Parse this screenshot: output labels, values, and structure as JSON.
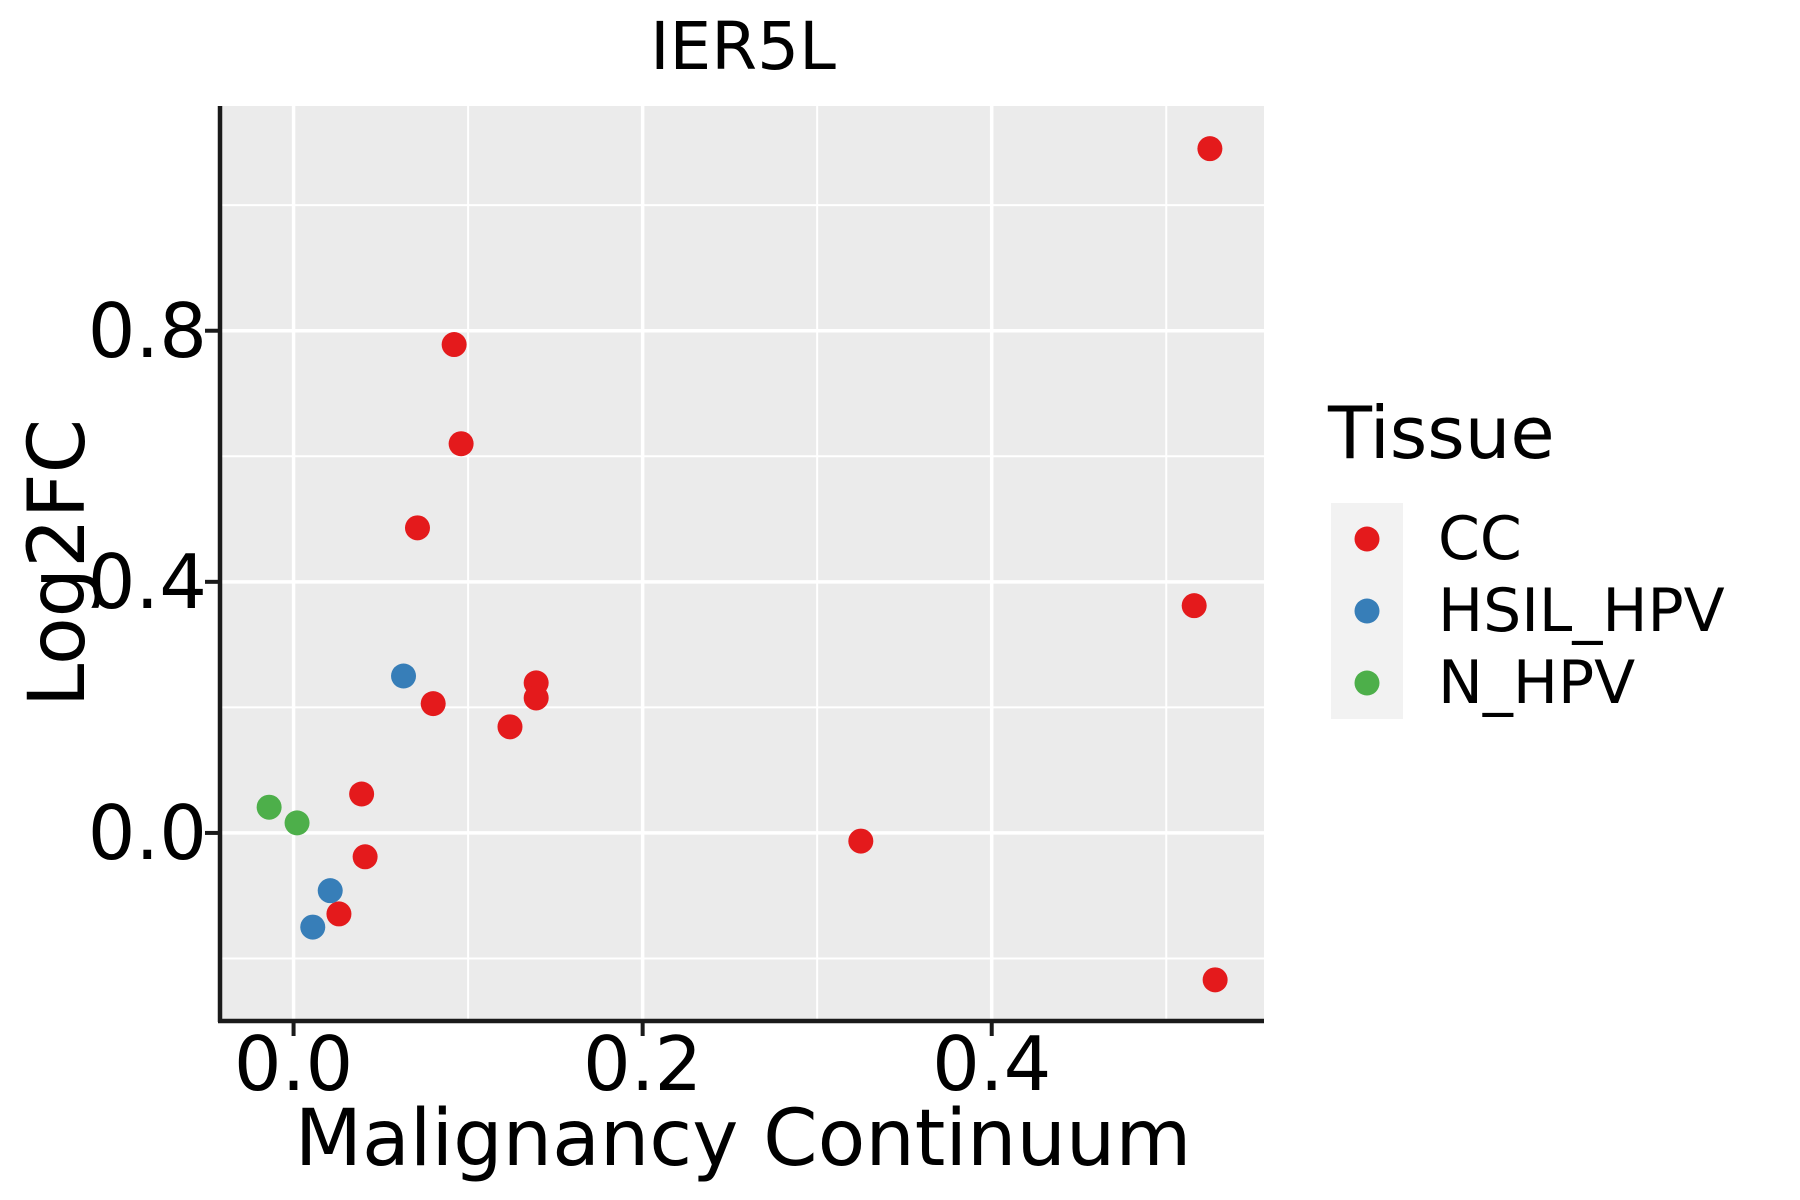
{
  "chart_data": {
    "type": "scatter",
    "title": "IER5L",
    "xlabel": "Malignancy Continuum",
    "ylabel": "Log2FC",
    "xlim": [
      -0.041,
      0.556
    ],
    "ylim": [
      -0.298,
      1.158
    ],
    "grid": true,
    "legend_position": "right",
    "x_ticks": {
      "values": [
        0.0,
        0.2,
        0.4
      ],
      "labels": [
        "0.0",
        "0.2",
        "0.4"
      ]
    },
    "y_ticks": {
      "values": [
        0.8,
        0.4,
        0.0
      ],
      "labels": [
        "0.8",
        "0.4",
        "0.0"
      ]
    },
    "x_minor": [
      0.1,
      0.3,
      0.5
    ],
    "y_minor": [
      1.0,
      0.6,
      0.2,
      -0.2
    ],
    "legend": {
      "title": "Tissue",
      "entries": [
        {
          "label": "CC",
          "color": "#E41A1C"
        },
        {
          "label": "HSIL_HPV",
          "color": "#377EB8"
        },
        {
          "label": "N_HPV",
          "color": "#4DAF4A"
        }
      ]
    },
    "series": [
      {
        "name": "CC",
        "color": "#E41A1C",
        "points": [
          [
            0.525,
            1.09
          ],
          [
            0.092,
            0.778
          ],
          [
            0.096,
            0.62
          ],
          [
            0.071,
            0.486
          ],
          [
            0.08,
            0.206
          ],
          [
            0.139,
            0.239
          ],
          [
            0.139,
            0.215
          ],
          [
            0.124,
            0.169
          ],
          [
            0.516,
            0.362
          ],
          [
            0.039,
            0.062
          ],
          [
            0.041,
            -0.038
          ],
          [
            0.026,
            -0.129
          ],
          [
            0.325,
            -0.013
          ],
          [
            0.528,
            -0.234
          ]
        ]
      },
      {
        "name": "HSIL_HPV",
        "color": "#377EB8",
        "points": [
          [
            0.063,
            0.25
          ],
          [
            0.021,
            -0.092
          ],
          [
            0.011,
            -0.15
          ]
        ]
      },
      {
        "name": "N_HPV",
        "color": "#4DAF4A",
        "points": [
          [
            -0.014,
            0.041
          ],
          [
            0.002,
            0.016
          ]
        ]
      }
    ],
    "point_radius": 12.5,
    "colors": {
      "panel_bg": "#EBEBEB",
      "grid": "#FFFFFF",
      "legend_key_bg": "#F2F2F2",
      "axis": "#1a1a1a",
      "text": "#000000"
    }
  }
}
